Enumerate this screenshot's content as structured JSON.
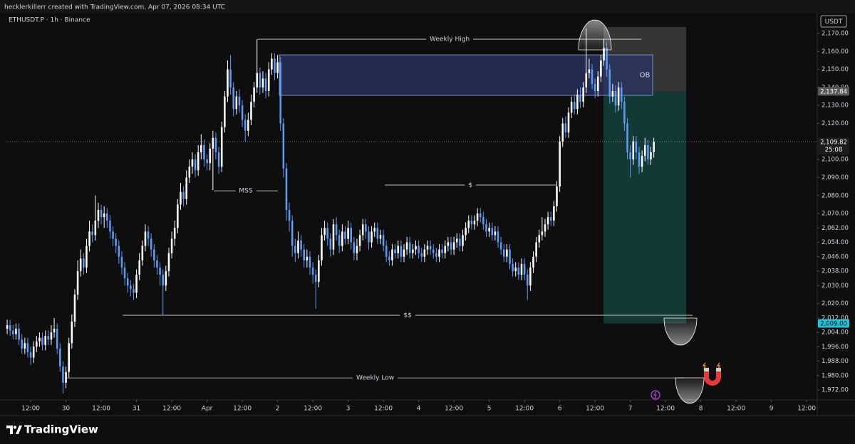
{
  "chart_data": {
    "type": "candlestick",
    "credit": "hecklerkillerr created with TradingView.com, Apr 07, 2026 08:34 UTC",
    "title": "ETHUSDT.P · 1h · Binance",
    "currency": "USDT",
    "brand": "TradingView",
    "x": [
      4,
      5,
      6,
      7,
      8,
      9,
      10,
      11,
      12,
      13,
      14,
      15,
      16,
      17,
      18,
      19,
      20,
      21,
      22,
      23,
      24,
      25,
      26,
      27,
      28,
      29,
      30,
      31,
      32,
      33,
      34,
      35,
      36,
      37,
      38,
      39,
      40,
      41,
      42,
      43,
      44,
      45,
      46,
      47,
      48,
      49,
      50,
      51,
      52,
      53,
      54,
      55,
      56,
      57,
      58,
      59,
      60,
      61,
      62,
      63,
      64,
      65,
      66,
      67,
      68,
      69,
      70,
      71,
      72,
      73,
      74,
      75,
      76,
      77,
      78,
      79,
      80,
      81,
      82,
      83,
      84,
      85,
      86,
      87,
      88,
      89,
      90,
      91,
      92,
      93,
      94,
      95,
      96,
      97,
      98,
      99,
      100,
      101,
      102,
      103,
      104,
      105,
      106,
      107,
      108,
      109,
      110,
      111,
      112,
      113,
      114,
      115,
      116,
      117,
      118,
      119,
      120,
      121,
      122,
      123,
      124,
      125,
      126,
      127,
      128,
      129,
      130,
      131,
      132,
      133,
      134,
      135,
      136,
      137,
      138,
      139,
      140,
      141,
      142,
      143,
      144,
      145,
      146,
      147,
      148,
      149,
      150,
      151,
      152,
      153,
      154,
      155,
      156,
      157,
      158,
      159,
      160,
      161,
      162,
      163,
      164,
      165,
      166,
      167,
      168,
      169,
      170,
      171,
      172,
      173,
      174,
      175,
      176,
      177,
      178,
      179,
      180,
      181,
      182,
      183,
      184,
      185,
      186,
      187,
      188,
      189,
      190,
      191,
      192,
      193,
      194,
      195,
      196,
      197,
      198,
      199,
      200,
      201,
      202,
      203,
      204,
      205,
      206,
      207,
      208,
      209,
      210,
      211,
      212,
      213,
      214,
      215,
      216,
      217,
      218,
      219,
      220,
      221,
      222,
      223,
      224
    ],
    "open": [
      2006,
      2008,
      2005,
      2003,
      2006,
      2000,
      1995,
      1998,
      1993,
      1990,
      1996,
      1999,
      2001,
      1997,
      2002,
      2000,
      2004,
      2006,
      1995,
      1985,
      1976,
      1982,
      1998,
      2010,
      2025,
      2038,
      2045,
      2040,
      2052,
      2060,
      2058,
      2066,
      2072,
      2068,
      2070,
      2066,
      2060,
      2056,
      2052,
      2046,
      2040,
      2034,
      2030,
      2028,
      2026,
      2036,
      2044,
      2052,
      2060,
      2056,
      2050,
      2044,
      2040,
      2036,
      2030,
      2038,
      2048,
      2056,
      2062,
      2075,
      2082,
      2078,
      2090,
      2096,
      2100,
      2094,
      2104,
      2108,
      2100,
      2098,
      2106,
      2112,
      2104,
      2096,
      2118,
      2135,
      2150,
      2140,
      2128,
      2135,
      2130,
      2122,
      2116,
      2122,
      2132,
      2140,
      2148,
      2140,
      2145,
      2138,
      2150,
      2156,
      2148,
      2154,
      2120,
      2095,
      2072,
      2066,
      2052,
      2048,
      2055,
      2050,
      2044,
      2046,
      2040,
      2036,
      2032,
      2044,
      2058,
      2062,
      2056,
      2050,
      2064,
      2058,
      2052,
      2060,
      2056,
      2062,
      2054,
      2048,
      2052,
      2058,
      2064,
      2060,
      2054,
      2060,
      2062,
      2056,
      2058,
      2052,
      2046,
      2044,
      2050,
      2048,
      2052,
      2046,
      2050,
      2054,
      2048,
      2050,
      2052,
      2048,
      2046,
      2050,
      2052,
      2050,
      2048,
      2046,
      2050,
      2048,
      2052,
      2054,
      2050,
      2054,
      2056,
      2052,
      2058,
      2062,
      2066,
      2064,
      2066,
      2070,
      2068,
      2064,
      2060,
      2062,
      2058,
      2060,
      2054,
      2050,
      2046,
      2050,
      2042,
      2038,
      2040,
      2036,
      2042,
      2036,
      2030,
      2040,
      2046,
      2054,
      2058,
      2060,
      2064,
      2068,
      2066,
      2074,
      2085,
      2110,
      2120,
      2115,
      2126,
      2132,
      2128,
      2136,
      2132,
      2140,
      2148,
      2150,
      2142,
      2138,
      2146,
      2155,
      2162,
      2150,
      2135,
      2138,
      2130,
      2140,
      2132,
      2120,
      2104,
      2100,
      2110,
      2104,
      2096,
      2102,
      2108,
      2100,
      2104
    ],
    "high": [
      2011,
      2011,
      2008,
      2009,
      2009,
      2003,
      2001,
      2001,
      1996,
      1999,
      2002,
      2004,
      2004,
      2005,
      2005,
      2008,
      2012,
      2009,
      1998,
      1988,
      1985,
      2001,
      2014,
      2028,
      2044,
      2050,
      2048,
      2056,
      2066,
      2064,
      2080,
      2076,
      2075,
      2074,
      2073,
      2069,
      2063,
      2059,
      2055,
      2049,
      2043,
      2037,
      2033,
      2031,
      2039,
      2048,
      2055,
      2064,
      2063,
      2059,
      2053,
      2047,
      2043,
      2039,
      2041,
      2051,
      2060,
      2066,
      2078,
      2087,
      2085,
      2094,
      2100,
      2104,
      2103,
      2108,
      2114,
      2111,
      2103,
      2109,
      2116,
      2115,
      2107,
      2121,
      2138,
      2155,
      2158,
      2143,
      2138,
      2139,
      2133,
      2125,
      2126,
      2136,
      2143,
      2166.8,
      2151,
      2149,
      2148,
      2154,
      2159,
      2159,
      2158,
      2157,
      2123,
      2098,
      2076,
      2069,
      2056,
      2060,
      2058,
      2053,
      2050,
      2049,
      2043,
      2039,
      2047,
      2062,
      2066,
      2065,
      2059,
      2067,
      2068,
      2061,
      2064,
      2063,
      2066,
      2065,
      2057,
      2056,
      2061,
      2067,
      2067,
      2063,
      2063,
      2065,
      2065,
      2061,
      2061,
      2055,
      2049,
      2053,
      2053,
      2055,
      2055,
      2053,
      2057,
      2057,
      2053,
      2055,
      2055,
      2051,
      2053,
      2055,
      2055,
      2053,
      2051,
      2053,
      2053,
      2055,
      2057,
      2057,
      2057,
      2059,
      2059,
      2061,
      2065,
      2069,
      2069,
      2069,
      2073,
      2073,
      2071,
      2067,
      2065,
      2065,
      2063,
      2063,
      2057,
      2053,
      2053,
      2053,
      2045,
      2043,
      2043,
      2045,
      2045,
      2039,
      2043,
      2049,
      2057,
      2061,
      2068,
      2067,
      2071,
      2071,
      2077,
      2088,
      2113,
      2123,
      2124,
      2129,
      2135,
      2136,
      2139,
      2140,
      2143,
      2172.8,
      2156,
      2153,
      2145,
      2149,
      2158,
      2167,
      2165,
      2153,
      2142,
      2141,
      2143,
      2143,
      2135,
      2123,
      2108,
      2113,
      2113,
      2107,
      2105,
      2112,
      2111,
      2107,
      2112
    ],
    "low": [
      2003,
      2002,
      2000,
      2000,
      1997,
      1992,
      1992,
      1990,
      1986,
      1987,
      1993,
      1996,
      1994,
      1994,
      1997,
      1997,
      2001,
      1992,
      1982,
      1970,
      1973,
      1979,
      1995,
      2007,
      2022,
      2035,
      2036,
      2037,
      2049,
      2054,
      2055,
      2062,
      2064,
      2062,
      2062,
      2056,
      2052,
      2048,
      2042,
      2036,
      2030,
      2026,
      2024,
      2022,
      2023,
      2033,
      2041,
      2049,
      2052,
      2046,
      2040,
      2036,
      2030,
      2013.5,
      2027,
      2035,
      2045,
      2052,
      2059,
      2072,
      2074,
      2075,
      2087,
      2092,
      2090,
      2091,
      2100,
      2096,
      2094,
      2094,
      2083,
      2100,
      2092,
      2093,
      2115,
      2132,
      2136,
      2124,
      2125,
      2126,
      2118,
      2110,
      2113,
      2119,
      2129,
      2137,
      2136,
      2137,
      2134,
      2135,
      2147,
      2144,
      2145,
      2116,
      2090,
      2066,
      2060,
      2046,
      2043,
      2045,
      2046,
      2040,
      2040,
      2036,
      2031,
      2017,
      2029,
      2041,
      2055,
      2052,
      2046,
      2047,
      2055,
      2048,
      2049,
      2053,
      2053,
      2050,
      2044,
      2044,
      2049,
      2055,
      2056,
      2050,
      2051,
      2057,
      2053,
      2053,
      2049,
      2043,
      2041,
      2041,
      2045,
      2045,
      2043,
      2043,
      2047,
      2045,
      2045,
      2047,
      2045,
      2043,
      2043,
      2047,
      2047,
      2045,
      2043,
      2043,
      2045,
      2045,
      2049,
      2047,
      2047,
      2051,
      2049,
      2049,
      2055,
      2059,
      2061,
      2061,
      2063,
      2065,
      2061,
      2057,
      2057,
      2055,
      2055,
      2051,
      2047,
      2043,
      2043,
      2039,
      2035,
      2035,
      2033,
      2033,
      2033,
      2022,
      2027,
      2037,
      2043,
      2051,
      2055,
      2057,
      2061,
      2063,
      2063,
      2071,
      2082,
      2107,
      2112,
      2112,
      2123,
      2125,
      2125,
      2129,
      2129,
      2137,
      2145,
      2139,
      2134,
      2135,
      2143,
      2152,
      2146,
      2131,
      2132,
      2126,
      2127,
      2128,
      2116,
      2100,
      2090,
      2097,
      2100,
      2092,
      2093,
      2099,
      2097,
      2097,
      2101
    ],
    "close": [
      2008,
      2005,
      2003,
      2006,
      2000,
      1995,
      1998,
      1993,
      1990,
      1996,
      1999,
      2001,
      1997,
      2002,
      2000,
      2004,
      2006,
      1995,
      1985,
      1976,
      1982,
      1998,
      2010,
      2025,
      2038,
      2045,
      2040,
      2052,
      2060,
      2058,
      2066,
      2072,
      2068,
      2070,
      2066,
      2060,
      2056,
      2052,
      2046,
      2040,
      2034,
      2030,
      2028,
      2026,
      2036,
      2044,
      2052,
      2060,
      2056,
      2050,
      2044,
      2040,
      2036,
      2030,
      2038,
      2048,
      2056,
      2062,
      2075,
      2082,
      2078,
      2090,
      2096,
      2100,
      2094,
      2104,
      2108,
      2100,
      2098,
      2106,
      2112,
      2104,
      2096,
      2118,
      2135,
      2150,
      2140,
      2128,
      2135,
      2130,
      2122,
      2116,
      2122,
      2132,
      2140,
      2148,
      2140,
      2145,
      2138,
      2150,
      2156,
      2148,
      2154,
      2120,
      2095,
      2072,
      2066,
      2052,
      2048,
      2055,
      2050,
      2044,
      2046,
      2040,
      2036,
      2032,
      2044,
      2058,
      2062,
      2056,
      2050,
      2064,
      2058,
      2052,
      2060,
      2056,
      2062,
      2054,
      2048,
      2052,
      2058,
      2064,
      2060,
      2054,
      2060,
      2062,
      2056,
      2058,
      2052,
      2046,
      2044,
      2050,
      2048,
      2052,
      2046,
      2050,
      2054,
      2048,
      2050,
      2052,
      2048,
      2046,
      2050,
      2052,
      2050,
      2048,
      2046,
      2050,
      2048,
      2052,
      2054,
      2050,
      2054,
      2056,
      2052,
      2058,
      2062,
      2066,
      2064,
      2066,
      2070,
      2068,
      2064,
      2060,
      2062,
      2058,
      2060,
      2054,
      2050,
      2046,
      2050,
      2042,
      2038,
      2040,
      2036,
      2042,
      2036,
      2030,
      2040,
      2046,
      2054,
      2058,
      2060,
      2064,
      2068,
      2066,
      2074,
      2085,
      2110,
      2120,
      2115,
      2126,
      2132,
      2128,
      2136,
      2132,
      2140,
      2148,
      2150,
      2142,
      2138,
      2146,
      2155,
      2162,
      2150,
      2135,
      2138,
      2130,
      2140,
      2132,
      2120,
      2104,
      2100,
      2110,
      2104,
      2096,
      2102,
      2108,
      2100,
      2104,
      2109.82
    ],
    "up_color": "#ffffff",
    "down_color": "#5b9cf6",
    "xlim": [
      3.5,
      279.6
    ],
    "ylim": [
      1966.5,
      2185.4
    ],
    "xticks": [
      {
        "value": 12,
        "label": "12:00"
      },
      {
        "value": 24,
        "label": "30"
      },
      {
        "value": 36,
        "label": "12:00"
      },
      {
        "value": 48,
        "label": "31"
      },
      {
        "value": 60,
        "label": "12:00"
      },
      {
        "value": 72,
        "label": "Apr"
      },
      {
        "value": 84,
        "label": "12:00"
      },
      {
        "value": 96,
        "label": "2"
      },
      {
        "value": 108,
        "label": "12:00"
      },
      {
        "value": 120,
        "label": "3"
      },
      {
        "value": 132,
        "label": "12:00"
      },
      {
        "value": 144,
        "label": "4"
      },
      {
        "value": 156,
        "label": "12:00"
      },
      {
        "value": 168,
        "label": "5"
      },
      {
        "value": 180,
        "label": "12:00"
      },
      {
        "value": 192,
        "label": "6"
      },
      {
        "value": 204,
        "label": "12:00"
      },
      {
        "value": 216,
        "label": "7"
      },
      {
        "value": 228,
        "label": "12:00"
      },
      {
        "value": 240,
        "label": "8"
      },
      {
        "value": 252,
        "label": "12:00"
      },
      {
        "value": 264,
        "label": "9"
      },
      {
        "value": 276,
        "label": "12:00"
      }
    ],
    "yticks": [
      {
        "value": 2170,
        "label": "2,170.00"
      },
      {
        "value": 2160,
        "label": "2,160.00"
      },
      {
        "value": 2150,
        "label": "2,150.00"
      },
      {
        "value": 2140,
        "label": "2,140.00"
      },
      {
        "value": 2130,
        "label": "2,130.00"
      },
      {
        "value": 2120,
        "label": "2,120.00"
      },
      {
        "value": 2110,
        "label": "2,110.00"
      },
      {
        "value": 2100,
        "label": "2,100.00"
      },
      {
        "value": 2090,
        "label": "2,090.00"
      },
      {
        "value": 2080,
        "label": "2,080.00"
      },
      {
        "value": 2070,
        "label": "2,070.00"
      },
      {
        "value": 2062,
        "label": "2,062.00"
      },
      {
        "value": 2054,
        "label": "2,054.00"
      },
      {
        "value": 2046,
        "label": "2,046.00"
      },
      {
        "value": 2038,
        "label": "2,038.00"
      },
      {
        "value": 2030,
        "label": "2,030.00"
      },
      {
        "value": 2020,
        "label": "2,020.00"
      },
      {
        "value": 2012,
        "label": "2,012.00"
      },
      {
        "value": 2004,
        "label": "2,004.00"
      },
      {
        "value": 1996,
        "label": "1,996.00"
      },
      {
        "value": 1988,
        "label": "1,988.00"
      },
      {
        "value": 1980,
        "label": "1,980.00"
      },
      {
        "value": 1972,
        "label": "1,972.00"
      }
    ],
    "zones": [
      {
        "label": "OB",
        "x": [
          96.6,
          223.6
        ],
        "y": [
          2135.6,
          2158.1
        ],
        "color": "#2a3566"
      }
    ],
    "levels": [
      {
        "label": "Weekly High",
        "value": 2166.8,
        "x": [
          89.3,
          219.8
        ]
      },
      {
        "label": "MSS",
        "value": 2082.6,
        "x": [
          74.3,
          96.1
        ]
      },
      {
        "label": "$",
        "value": 2085.8,
        "x": [
          132.5,
          190.7
        ]
      },
      {
        "label": "$$",
        "value": 2013.5,
        "x": [
          43.3,
          237.2
        ]
      },
      {
        "label": "Weekly Low",
        "value": 1978.7,
        "x": [
          24.1,
          234.3
        ]
      }
    ],
    "position": {
      "entry": {
        "value": 2137.84,
        "label": "2,137.84"
      },
      "stop": 2173.6,
      "target": {
        "value": 2009,
        "label": "2,009.00"
      },
      "x": [
        206.9,
        235
      ]
    },
    "last_price": {
      "value": 2109.82,
      "label": "2,109.82",
      "countdown": "25:08"
    }
  }
}
